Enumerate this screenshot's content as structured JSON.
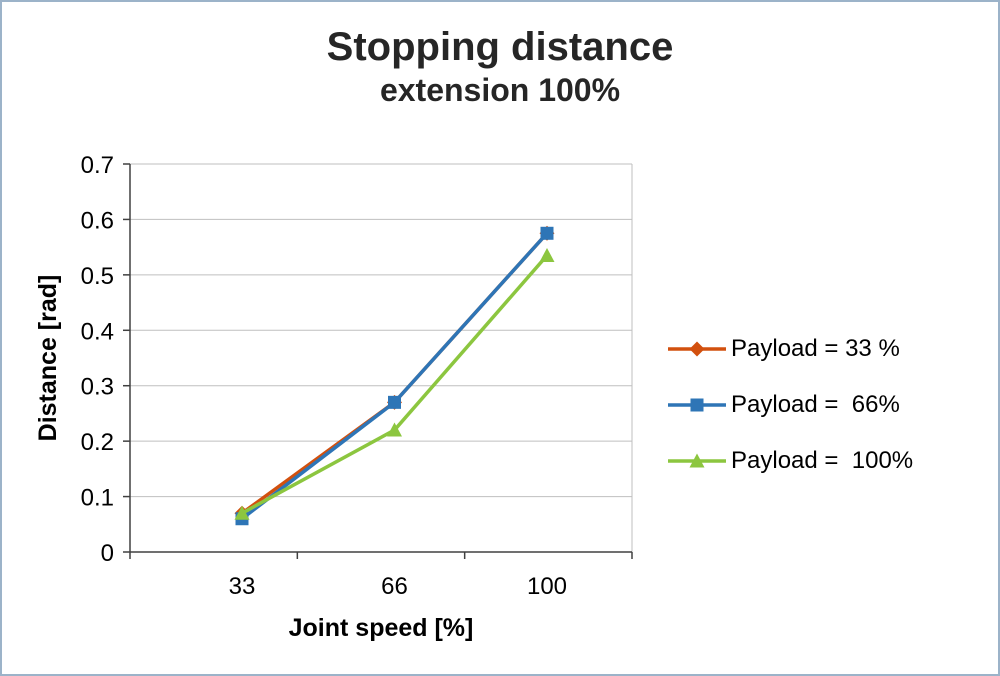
{
  "chart_data": {
    "type": "line",
    "title": "Stopping distance",
    "subtitle": "extension 100%",
    "xlabel": "Joint speed [%]",
    "ylabel": "Distance [rad]",
    "categories": [
      "33",
      "66",
      "100"
    ],
    "ylim": [
      0,
      0.7
    ],
    "ytick_step": 0.1,
    "grid": true,
    "legend_position": "right",
    "colors": {
      "gridline": "#BFBFBF",
      "axis": "#404040",
      "text": "#000000"
    },
    "series": [
      {
        "name": "Payload = 33 %",
        "marker": "diamond",
        "color": "#D2500E",
        "values": [
          0.07,
          0.27,
          0.575
        ]
      },
      {
        "name": "Payload =  66%",
        "marker": "square",
        "color": "#2E75B6",
        "values": [
          0.06,
          0.27,
          0.575
        ]
      },
      {
        "name": "Payload =  100%",
        "marker": "triangle",
        "color": "#8CC63F",
        "values": [
          0.07,
          0.22,
          0.535
        ]
      }
    ]
  }
}
